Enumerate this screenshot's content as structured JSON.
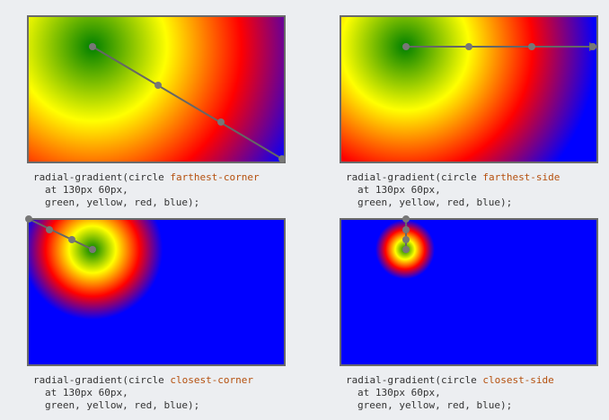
{
  "panels": [
    {
      "code": {
        "prefix": "radial-gradient(circle",
        "keyword": "farthest-corner",
        "line2": "at 130px 60px,",
        "line3": "green, yellow, red, blue);"
      }
    },
    {
      "code": {
        "prefix": "radial-gradient(circle",
        "keyword": "farthest-side",
        "line2": "at 130px 60px,",
        "line3": "green, yellow, red, blue);"
      }
    },
    {
      "code": {
        "prefix": "radial-gradient(circle",
        "keyword": "closest-corner",
        "line2": "at 130px 60px,",
        "line3": "green, yellow, red, blue);"
      }
    },
    {
      "code": {
        "prefix": "radial-gradient(circle",
        "keyword": "closest-side",
        "line2": "at 130px 60px,",
        "line3": "green, yellow, red, blue);"
      }
    }
  ]
}
